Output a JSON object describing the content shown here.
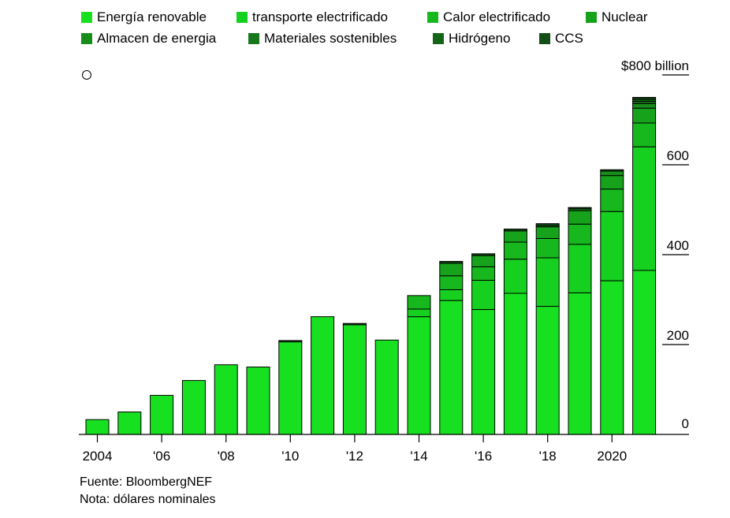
{
  "legend_rows": [
    [
      "Energía renovable",
      "transporte electrificado",
      "Calor electrificado",
      "Nuclear"
    ],
    [
      "Almacen de energia",
      "Materiales sostenibles",
      "Hidrógeno",
      "CCS"
    ]
  ],
  "colors": [
    "#17e020",
    "#15d01e",
    "#16b81d",
    "#17a21c",
    "#178d1b",
    "#16781a",
    "#156518",
    "#134f16"
  ],
  "source": {
    "line1": "Fuente: BloombergNEF",
    "line2": "Nota: dólares nominales"
  },
  "chart_data": {
    "type": "bar",
    "stacked": true,
    "categories": [
      "2004",
      "2005",
      "2006",
      "2007",
      "2008",
      "2009",
      "2010",
      "2011",
      "2012",
      "2013",
      "2014",
      "2015",
      "2016",
      "2017",
      "2018",
      "2019",
      "2020",
      "2021"
    ],
    "x_tick_labels": [
      "2004",
      "'06",
      "'08",
      "'10",
      "'12",
      "'14",
      "'16",
      "'18",
      "2020"
    ],
    "y_tick_labels": [
      "0",
      "200",
      "400",
      "600",
      "$800 billion"
    ],
    "y_ticks": [
      0,
      200,
      400,
      600,
      800
    ],
    "ylim": [
      0,
      800
    ],
    "grid": false,
    "legend_position": "top",
    "series": [
      {
        "name": "Energía renovable",
        "values": [
          33,
          50,
          87,
          120,
          155,
          150,
          206,
          262,
          244,
          210,
          262,
          298,
          278,
          314,
          285,
          315,
          342,
          365
        ]
      },
      {
        "name": "transporte electrificado",
        "values": [
          0,
          0,
          0,
          0,
          0,
          0,
          0,
          0,
          0,
          0,
          17,
          24,
          65,
          76,
          108,
          108,
          154,
          275
        ]
      },
      {
        "name": "Calor electrificado",
        "values": [
          0,
          0,
          0,
          0,
          0,
          0,
          0,
          0,
          0,
          0,
          30,
          31,
          30,
          38,
          43,
          45,
          50,
          53
        ]
      },
      {
        "name": "Nuclear",
        "values": [
          0,
          0,
          0,
          0,
          0,
          0,
          0,
          0,
          0,
          0,
          0,
          28,
          25,
          25,
          26,
          30,
          30,
          33
        ]
      },
      {
        "name": "Almacen de energia",
        "values": [
          0,
          0,
          0,
          0,
          0,
          0,
          0,
          0,
          0,
          0,
          0,
          0,
          0,
          0,
          3,
          4,
          10,
          10
        ]
      },
      {
        "name": "Materiales sostenibles",
        "values": [
          0,
          0,
          0,
          0,
          0,
          0,
          0,
          0,
          0,
          0,
          0,
          0,
          0,
          0,
          0,
          0,
          0,
          5
        ]
      },
      {
        "name": "Hidrógeno",
        "values": [
          0,
          0,
          0,
          0,
          0,
          0,
          0,
          0,
          0,
          0,
          0,
          0,
          0,
          0,
          0,
          0,
          0,
          5
        ]
      },
      {
        "name": "CCS",
        "values": [
          0,
          0,
          0,
          0,
          0,
          0,
          3,
          0,
          3,
          0,
          0,
          4,
          4,
          4,
          4,
          3,
          3,
          4
        ]
      }
    ]
  }
}
